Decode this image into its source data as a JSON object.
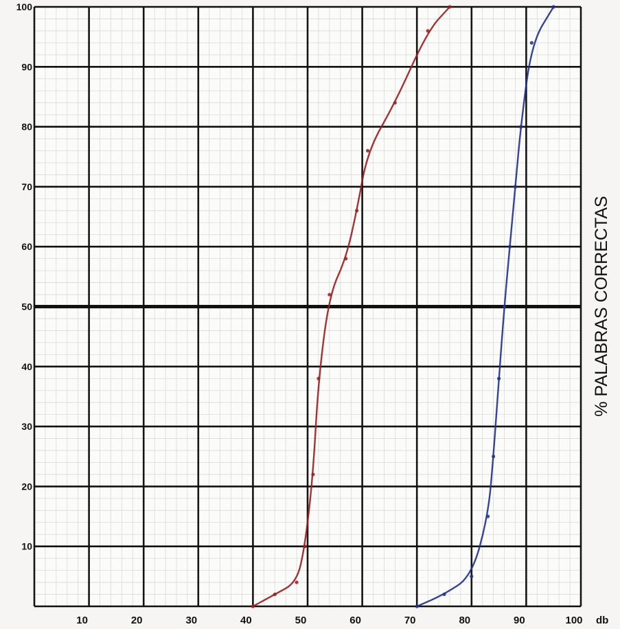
{
  "chart_data": {
    "type": "line",
    "title": "",
    "xlabel": "db",
    "ylabel": "% PALABRAS CORRECTAS",
    "xlim": [
      0,
      100
    ],
    "ylim": [
      0,
      100
    ],
    "x_ticks": [
      "10",
      "20",
      "30",
      "40",
      "50",
      "60",
      "70",
      "80",
      "90",
      "100"
    ],
    "y_ticks": [
      "10",
      "20",
      "30",
      "40",
      "50",
      "60",
      "70",
      "80",
      "90",
      "100"
    ],
    "grid": true,
    "emphasized_gridline_y": 50,
    "series": [
      {
        "color": "#9b1c1c",
        "x": [
          40,
          44,
          48,
          49.5,
          51,
          52,
          54,
          57,
          59,
          61,
          66,
          72,
          76
        ],
        "y": [
          0,
          2,
          4,
          10,
          22,
          38,
          52,
          58,
          66,
          76,
          84,
          96,
          100
        ]
      },
      {
        "color": "#1f2f8f",
        "x": [
          70,
          75,
          80,
          83,
          84,
          85,
          86,
          87,
          88,
          89,
          91,
          95
        ],
        "y": [
          0,
          2,
          5,
          15,
          25,
          38,
          50,
          60,
          70,
          80,
          94,
          100
        ]
      }
    ]
  }
}
